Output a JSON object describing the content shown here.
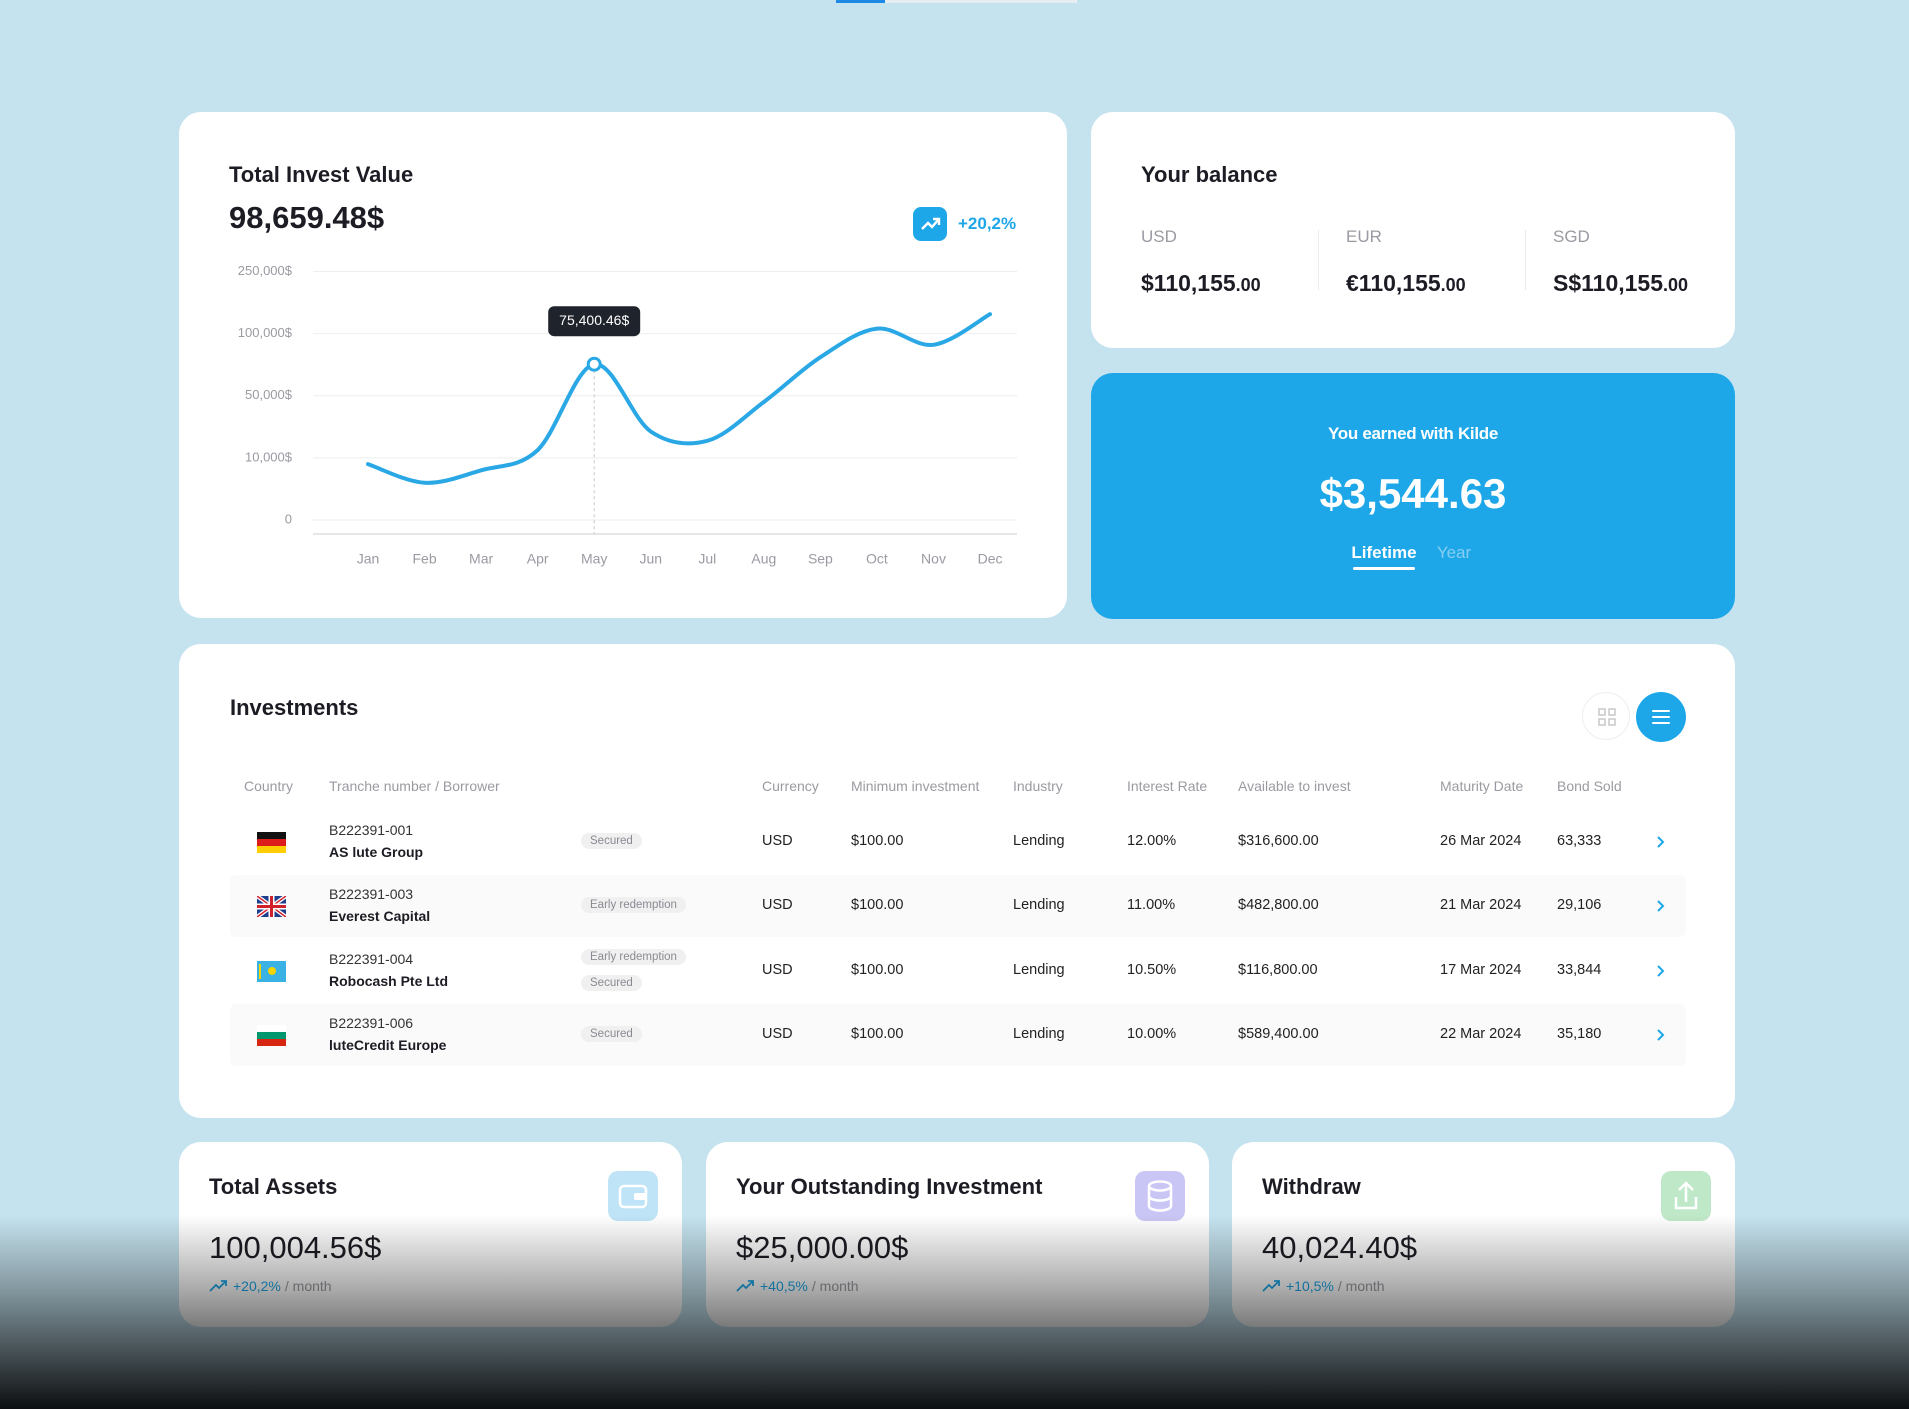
{
  "invest_card": {
    "title": "Total Invest Value",
    "value": "98,659.48$",
    "change": "+20,2%"
  },
  "chart_data": {
    "type": "line",
    "categories": [
      "Jan",
      "Feb",
      "Mar",
      "Apr",
      "May",
      "Jun",
      "Jul",
      "Aug",
      "Sep",
      "Oct",
      "Nov",
      "Dec"
    ],
    "values": [
      9000,
      6000,
      8000,
      15000,
      75400.46,
      27000,
      21000,
      46000,
      81000,
      112000,
      91000,
      147000
    ],
    "value_labels": [
      null,
      null,
      null,
      null,
      "75,400.46$",
      null,
      null,
      null,
      null,
      null,
      null,
      null
    ],
    "color": "#2aa8e6",
    "ylim": [
      0,
      250000
    ],
    "yticks": [
      0,
      {
        "value": 10000,
        "label": "10,000$"
      },
      {
        "value": 50000,
        "label": "50,000$"
      },
      {
        "value": 100000,
        "label": "100,000$"
      },
      {
        "value": 250000,
        "label": "250,000$"
      }
    ],
    "grid": true
  },
  "balance": {
    "title": "Your balance",
    "currencies": [
      {
        "code": "USD",
        "amount": "$110,155",
        "cents": ".00"
      },
      {
        "code": "EUR",
        "amount": "€110,155",
        "cents": ".00"
      },
      {
        "code": "SGD",
        "amount": "S$110,155",
        "cents": ".00"
      }
    ]
  },
  "earned": {
    "title": "You earned with Kilde",
    "amount": "$3,544.63",
    "tabs": [
      "Lifetime",
      "Year"
    ]
  },
  "investments": {
    "title": "Investments",
    "columns": [
      "Country",
      "Tranche number / Borrower",
      "Currency",
      "Minimum investment",
      "Industry",
      "Interest Rate",
      "Available to invest",
      "Maturity Date",
      "Bond Sold"
    ],
    "rows": [
      {
        "tranche": "B222391-001",
        "borrower": "AS lute Group",
        "tags": [
          "Secured"
        ],
        "currency": "USD",
        "minimum": "$100.00",
        "industry": "Lending",
        "rate": "12.00%",
        "available": "$316,600.00",
        "maturity": "26 Mar 2024",
        "sold": "63,333"
      },
      {
        "tranche": "B222391-003",
        "borrower": "Everest Capital",
        "tags": [
          "Early redemption"
        ],
        "currency": "USD",
        "minimum": "$100.00",
        "industry": "Lending",
        "rate": "11.00%",
        "available": "$482,800.00",
        "maturity": "21 Mar 2024",
        "sold": "29,106"
      },
      {
        "tranche": "B222391-004",
        "borrower": "Robocash Pte Ltd",
        "tags": [
          "Early redemption",
          "Secured"
        ],
        "currency": "USD",
        "minimum": "$100.00",
        "industry": "Lending",
        "rate": "10.50%",
        "available": "$116,800.00",
        "maturity": "17 Mar 2024",
        "sold": "33,844"
      },
      {
        "tranche": "B222391-006",
        "borrower": "luteCredit Europe",
        "tags": [
          "Secured"
        ],
        "currency": "USD",
        "minimum": "$100.00",
        "industry": "Lending",
        "rate": "10.00%",
        "available": "$589,400.00",
        "maturity": "22 Mar 2024",
        "sold": "35,180"
      }
    ]
  },
  "summary": [
    {
      "title": "Total Assets",
      "value": "100,004.56$",
      "change": "+20,2%",
      "period": "/ month"
    },
    {
      "title": "Your Outstanding Investment",
      "value": "$25,000.00$",
      "change": "+40,5%",
      "period": "/ month"
    },
    {
      "title": "Withdraw",
      "value": "40,024.40$",
      "change": "+10,5%",
      "period": "/ month"
    }
  ]
}
